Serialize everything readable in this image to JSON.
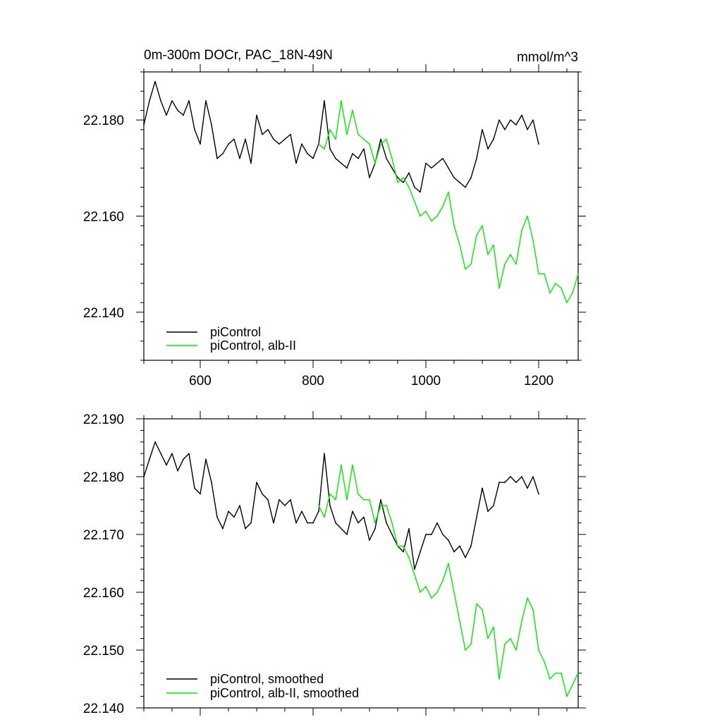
{
  "chart_data": [
    {
      "type": "line",
      "title": "0m-300m DOCr, PAC_18N-49N",
      "units": "mmol/m^3",
      "xlabel": "",
      "ylabel": "",
      "xlim": [
        500,
        1270
      ],
      "ylim": [
        22.13,
        22.19
      ],
      "x_ticks": [
        600,
        800,
        1000,
        1200
      ],
      "x_tick_labels": [
        "600",
        "800",
        "1000",
        "1200"
      ],
      "y_ticks": [
        22.14,
        22.16,
        22.18
      ],
      "y_tick_labels": [
        "22.140",
        "22.160",
        "22.180"
      ],
      "grid": false,
      "legend_position": "bottom-left",
      "series": [
        {
          "name": "piControl",
          "color": "#000000",
          "x": [
            500,
            510,
            520,
            530,
            540,
            550,
            560,
            570,
            580,
            590,
            600,
            610,
            620,
            630,
            640,
            650,
            660,
            670,
            680,
            690,
            700,
            710,
            720,
            730,
            740,
            750,
            760,
            770,
            780,
            790,
            800,
            810,
            820,
            830,
            840,
            850,
            860,
            870,
            880,
            890,
            900,
            910,
            920,
            930,
            940,
            950,
            960,
            970,
            980,
            990,
            1000,
            1010,
            1020,
            1030,
            1040,
            1050,
            1060,
            1070,
            1080,
            1090,
            1100,
            1110,
            1120,
            1130,
            1140,
            1150,
            1160,
            1170,
            1180,
            1190,
            1200
          ],
          "y": [
            22.179,
            22.184,
            22.188,
            22.184,
            22.181,
            22.184,
            22.182,
            22.181,
            22.184,
            22.178,
            22.175,
            22.184,
            22.179,
            22.172,
            22.173,
            22.175,
            22.176,
            22.172,
            22.176,
            22.171,
            22.181,
            22.177,
            22.178,
            22.176,
            22.175,
            22.176,
            22.177,
            22.171,
            22.175,
            22.173,
            22.172,
            22.175,
            22.184,
            22.174,
            22.172,
            22.171,
            22.17,
            22.173,
            22.172,
            22.174,
            22.168,
            22.171,
            22.176,
            22.172,
            22.17,
            22.168,
            22.167,
            22.169,
            22.166,
            22.165,
            22.171,
            22.17,
            22.171,
            22.172,
            22.17,
            22.168,
            22.167,
            22.166,
            22.168,
            22.172,
            22.178,
            22.174,
            22.176,
            22.18,
            22.178,
            22.18,
            22.179,
            22.181,
            22.178,
            22.18,
            22.175
          ]
        },
        {
          "name": "piControl, alb-II",
          "color": "#00ee00",
          "x": [
            810,
            820,
            830,
            840,
            850,
            860,
            870,
            880,
            890,
            900,
            910,
            920,
            930,
            940,
            950,
            960,
            970,
            980,
            990,
            1000,
            1010,
            1020,
            1030,
            1040,
            1050,
            1060,
            1070,
            1080,
            1090,
            1100,
            1110,
            1120,
            1130,
            1140,
            1150,
            1160,
            1170,
            1180,
            1190,
            1200,
            1210,
            1220,
            1230,
            1240,
            1250,
            1260,
            1270
          ],
          "y": [
            22.175,
            22.174,
            22.178,
            22.176,
            22.184,
            22.177,
            22.182,
            22.177,
            22.176,
            22.175,
            22.171,
            22.175,
            22.176,
            22.172,
            22.167,
            22.168,
            22.166,
            22.163,
            22.16,
            22.161,
            22.159,
            22.16,
            22.162,
            22.165,
            22.158,
            22.154,
            22.149,
            22.15,
            22.156,
            22.158,
            22.152,
            22.154,
            22.145,
            22.15,
            22.152,
            22.15,
            22.157,
            22.16,
            22.155,
            22.148,
            22.148,
            22.144,
            22.146,
            22.145,
            22.142,
            22.144,
            22.148
          ]
        }
      ]
    },
    {
      "type": "line",
      "title": "",
      "xlabel": "",
      "ylabel": "",
      "xlim": [
        500,
        1270
      ],
      "ylim": [
        22.14,
        22.19
      ],
      "x_ticks": [
        600,
        800,
        1000,
        1200
      ],
      "y_ticks": [
        22.14,
        22.15,
        22.16,
        22.17,
        22.18,
        22.19
      ],
      "y_tick_labels": [
        "22.140",
        "22.150",
        "22.160",
        "22.170",
        "22.180",
        "22.190"
      ],
      "grid": false,
      "legend_position": "bottom-left",
      "series": [
        {
          "name": "piControl, smoothed",
          "color": "#000000",
          "x": [
            500,
            510,
            520,
            530,
            540,
            550,
            560,
            570,
            580,
            590,
            600,
            610,
            620,
            630,
            640,
            650,
            660,
            670,
            680,
            690,
            700,
            710,
            720,
            730,
            740,
            750,
            760,
            770,
            780,
            790,
            800,
            810,
            820,
            830,
            840,
            850,
            860,
            870,
            880,
            890,
            900,
            910,
            920,
            930,
            940,
            950,
            960,
            970,
            980,
            990,
            1000,
            1010,
            1020,
            1030,
            1040,
            1050,
            1060,
            1070,
            1080,
            1090,
            1100,
            1110,
            1120,
            1130,
            1140,
            1150,
            1160,
            1170,
            1180,
            1190,
            1200
          ],
          "y": [
            22.18,
            22.183,
            22.186,
            22.184,
            22.182,
            22.184,
            22.181,
            22.183,
            22.184,
            22.178,
            22.177,
            22.183,
            22.179,
            22.173,
            22.171,
            22.174,
            22.173,
            22.175,
            22.171,
            22.172,
            22.179,
            22.177,
            22.176,
            22.172,
            22.176,
            22.175,
            22.176,
            22.172,
            22.174,
            22.172,
            22.172,
            22.174,
            22.184,
            22.175,
            22.172,
            22.171,
            22.17,
            22.174,
            22.172,
            22.173,
            22.169,
            22.171,
            22.176,
            22.172,
            22.17,
            22.168,
            22.167,
            22.171,
            22.164,
            22.167,
            22.17,
            22.17,
            22.172,
            22.17,
            22.169,
            22.167,
            22.168,
            22.166,
            22.168,
            22.173,
            22.178,
            22.174,
            22.175,
            22.179,
            22.179,
            22.18,
            22.179,
            22.18,
            22.178,
            22.18,
            22.177
          ]
        },
        {
          "name": "piControl, alb-II, smoothed",
          "color": "#00ee00",
          "x": [
            810,
            820,
            830,
            840,
            850,
            860,
            870,
            880,
            890,
            900,
            910,
            920,
            930,
            940,
            950,
            960,
            970,
            980,
            990,
            1000,
            1010,
            1020,
            1030,
            1040,
            1050,
            1060,
            1070,
            1080,
            1090,
            1100,
            1110,
            1120,
            1130,
            1140,
            1150,
            1160,
            1170,
            1180,
            1190,
            1200,
            1210,
            1220,
            1230,
            1240,
            1250,
            1260,
            1270
          ],
          "y": [
            22.175,
            22.173,
            22.177,
            22.176,
            22.182,
            22.176,
            22.182,
            22.177,
            22.176,
            22.176,
            22.172,
            22.175,
            22.175,
            22.172,
            22.168,
            22.168,
            22.166,
            22.163,
            22.16,
            22.161,
            22.159,
            22.16,
            22.162,
            22.165,
            22.16,
            22.155,
            22.15,
            22.151,
            22.158,
            22.157,
            22.152,
            22.154,
            22.145,
            22.151,
            22.152,
            22.15,
            22.155,
            22.159,
            22.157,
            22.15,
            22.148,
            22.145,
            22.146,
            22.146,
            22.142,
            22.144,
            22.146
          ]
        }
      ]
    }
  ]
}
